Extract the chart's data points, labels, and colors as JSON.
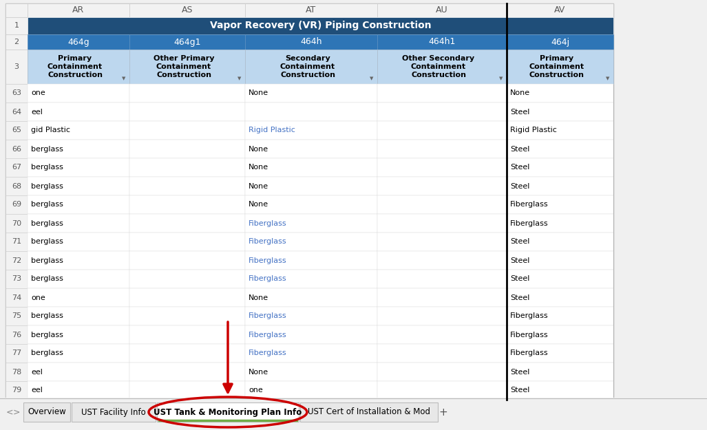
{
  "col_headers": [
    "AR",
    "AS",
    "AT",
    "AU",
    "AV"
  ],
  "row1_text": "Vapor Recovery (VR) Piping Construction",
  "row2_codes": [
    "464g",
    "464g1",
    "464h",
    "464h1",
    "464j"
  ],
  "row3_labels": [
    "Primary\nContainment\nConstruction",
    "Other Primary\nContainment\nConstruction",
    "Secondary\nContainment\nConstruction",
    "Other Secondary\nContainment\nConstruction",
    "Primary\nContainment\nConstruction"
  ],
  "row_numbers": [
    63,
    64,
    65,
    66,
    67,
    68,
    69,
    70,
    71,
    72,
    73,
    74,
    75,
    76,
    77,
    78,
    79
  ],
  "data_rows": [
    [
      "one",
      "",
      "None",
      "",
      "None"
    ],
    [
      "eel",
      "",
      "",
      "",
      "Steel"
    ],
    [
      "gid Plastic",
      "",
      "Rigid Plastic",
      "",
      "Rigid Plastic"
    ],
    [
      "berglass",
      "",
      "None",
      "",
      "Steel"
    ],
    [
      "berglass",
      "",
      "None",
      "",
      "Steel"
    ],
    [
      "berglass",
      "",
      "None",
      "",
      "Steel"
    ],
    [
      "berglass",
      "",
      "None",
      "",
      "Fiberglass"
    ],
    [
      "berglass",
      "",
      "Fiberglass",
      "",
      "Fiberglass"
    ],
    [
      "berglass",
      "",
      "Fiberglass",
      "",
      "Steel"
    ],
    [
      "berglass",
      "",
      "Fiberglass",
      "",
      "Steel"
    ],
    [
      "berglass",
      "",
      "Fiberglass",
      "",
      "Steel"
    ],
    [
      "one",
      "",
      "None",
      "",
      "Steel"
    ],
    [
      "berglass",
      "",
      "Fiberglass",
      "",
      "Fiberglass"
    ],
    [
      "berglass",
      "",
      "Fiberglass",
      "",
      "Fiberglass"
    ],
    [
      "berglass",
      "",
      "Fiberglass",
      "",
      "Fiberglass"
    ],
    [
      "eel",
      "",
      "None",
      "",
      "Steel"
    ],
    [
      "eel",
      "",
      "one",
      "",
      "Steel"
    ]
  ],
  "col_header_bg": "#1F4E79",
  "col_header_fg": "#FFFFFF",
  "row2_bg": "#2E75B6",
  "row2_fg": "#FFFFFF",
  "row3_bg": "#BDD7EE",
  "row3_fg": "#000000",
  "data_fg_blue": "#4472C4",
  "data_fg_black": "#000000",
  "sheet_tabs": [
    "Overview",
    "UST Facility Info",
    "UST Tank & Monitoring Plan Info",
    "UST Cert of Installation & Mod"
  ],
  "active_tab": "UST Tank & Monitoring Plan Info",
  "row_num_bg": "#F2F2F2",
  "row_num_fg": "#595959",
  "col_hdr_bg": "#F2F2F2",
  "col_hdr_fg": "#595959",
  "arrow_color": "#CC0000",
  "circle_color": "#CC0000",
  "bg_color": "#F0F0F0",
  "sheet_bg": "#FFFFFF",
  "grid_line_color": "#D0D0D0",
  "thick_border_color": "#000000"
}
